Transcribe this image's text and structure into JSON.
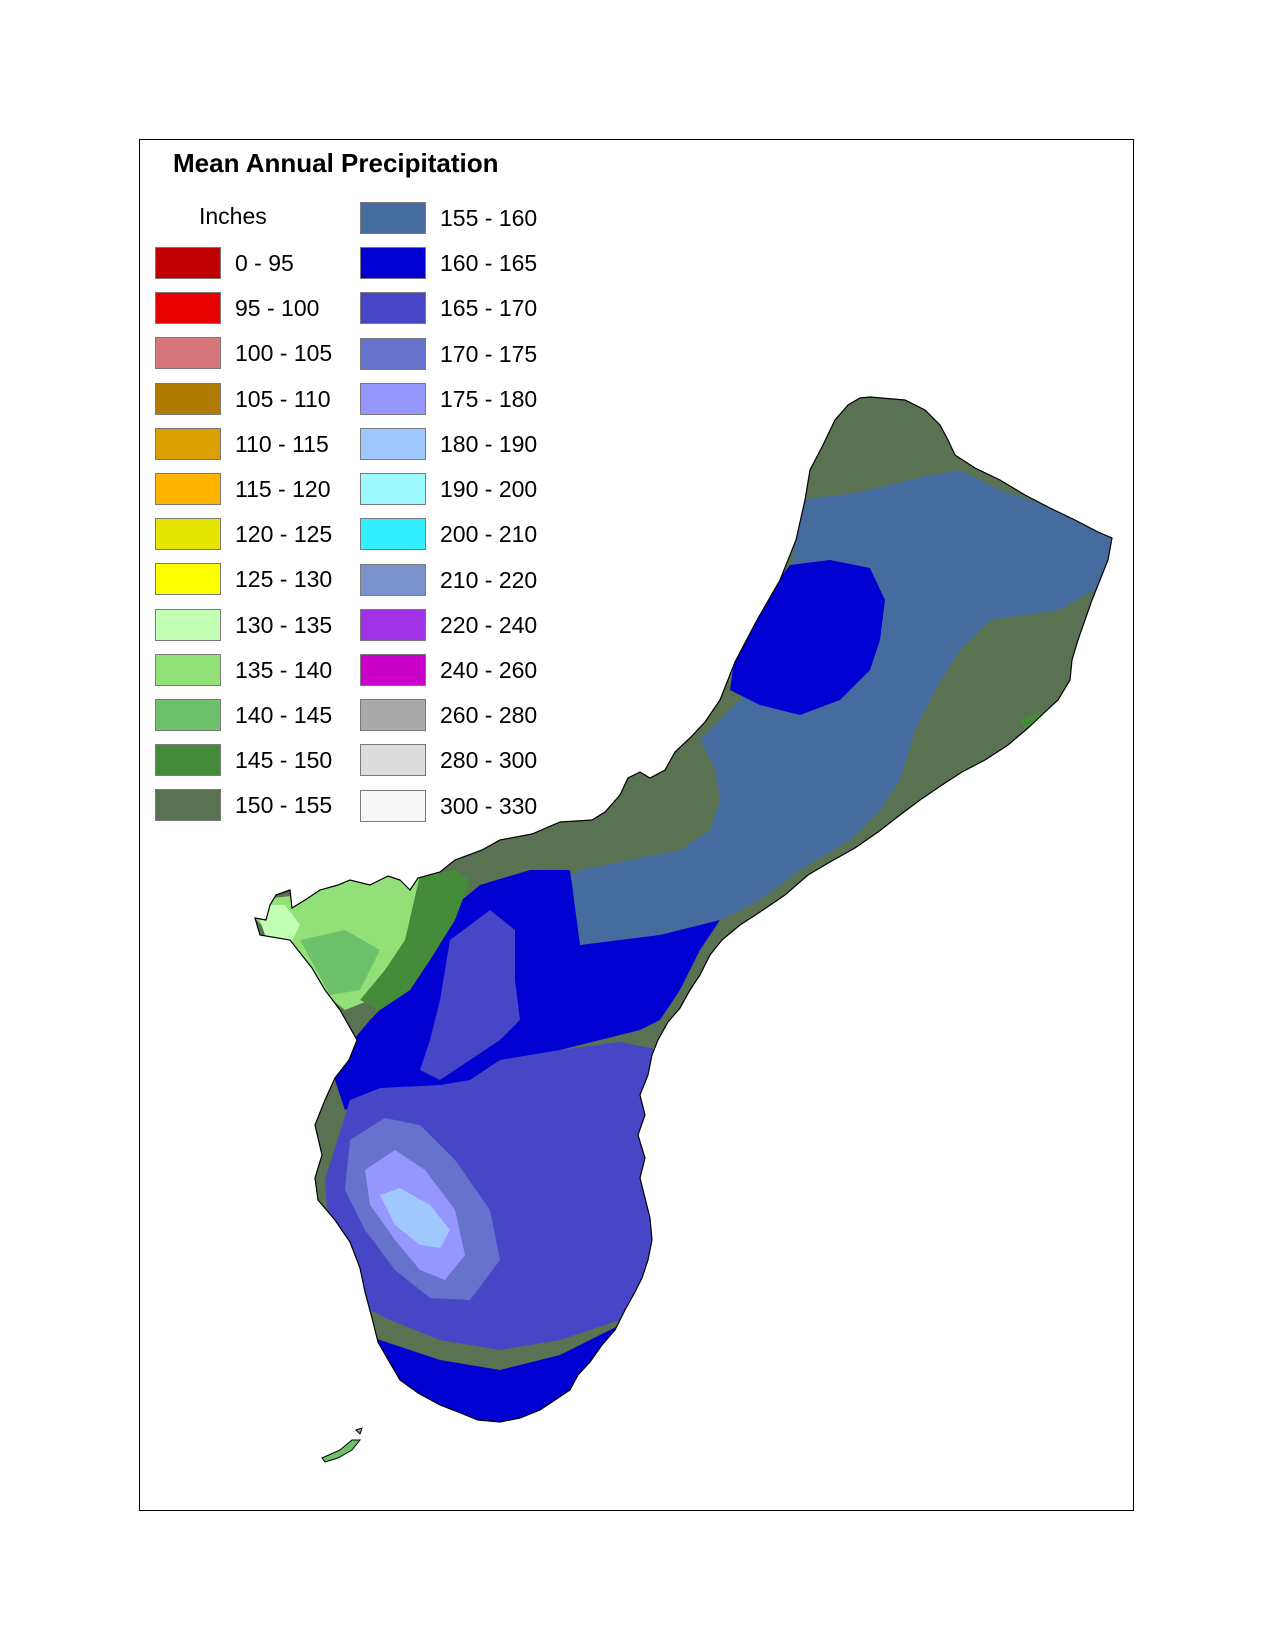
{
  "map": {
    "title": "Mean Annual Precipitation",
    "units_label": "Inches"
  },
  "legend": {
    "left_column": [
      {
        "label": "0 - 95",
        "color": "#c00000"
      },
      {
        "label": "95 - 100",
        "color": "#e60000"
      },
      {
        "label": "100 - 105",
        "color": "#d7767a"
      },
      {
        "label": "105 - 110",
        "color": "#b07c00"
      },
      {
        "label": "110 - 115",
        "color": "#d9a000"
      },
      {
        "label": "115 - 120",
        "color": "#ffb400"
      },
      {
        "label": "120 - 125",
        "color": "#e5e600"
      },
      {
        "label": "125 - 130",
        "color": "#ffff00"
      },
      {
        "label": "130 - 135",
        "color": "#c3ffb4"
      },
      {
        "label": "135 - 140",
        "color": "#92e178"
      },
      {
        "label": "140 - 145",
        "color": "#6cc16a"
      },
      {
        "label": "145 - 150",
        "color": "#458c3a"
      },
      {
        "label": "150 - 155",
        "color": "#597352"
      }
    ],
    "right_column": [
      {
        "label": "155 - 160",
        "color": "#466b9e"
      },
      {
        "label": "160 - 165",
        "color": "#0000d2"
      },
      {
        "label": "165 - 170",
        "color": "#4646c6"
      },
      {
        "label": "170 - 175",
        "color": "#6673cc"
      },
      {
        "label": "175 - 180",
        "color": "#9696ff"
      },
      {
        "label": "180 - 190",
        "color": "#a0c8ff"
      },
      {
        "label": "190 - 200",
        "color": "#9cfaff"
      },
      {
        "label": "200 - 210",
        "color": "#32f0ff"
      },
      {
        "label": "210 - 220",
        "color": "#7b93cc"
      },
      {
        "label": "220 - 240",
        "color": "#a032e6"
      },
      {
        "label": "240 - 260",
        "color": "#c800c8"
      },
      {
        "label": "260 - 280",
        "color": "#aaaaaa"
      },
      {
        "label": "280 - 300",
        "color": "#dcdcdc"
      },
      {
        "label": "300 - 330",
        "color": "#f8f8f8"
      }
    ]
  }
}
